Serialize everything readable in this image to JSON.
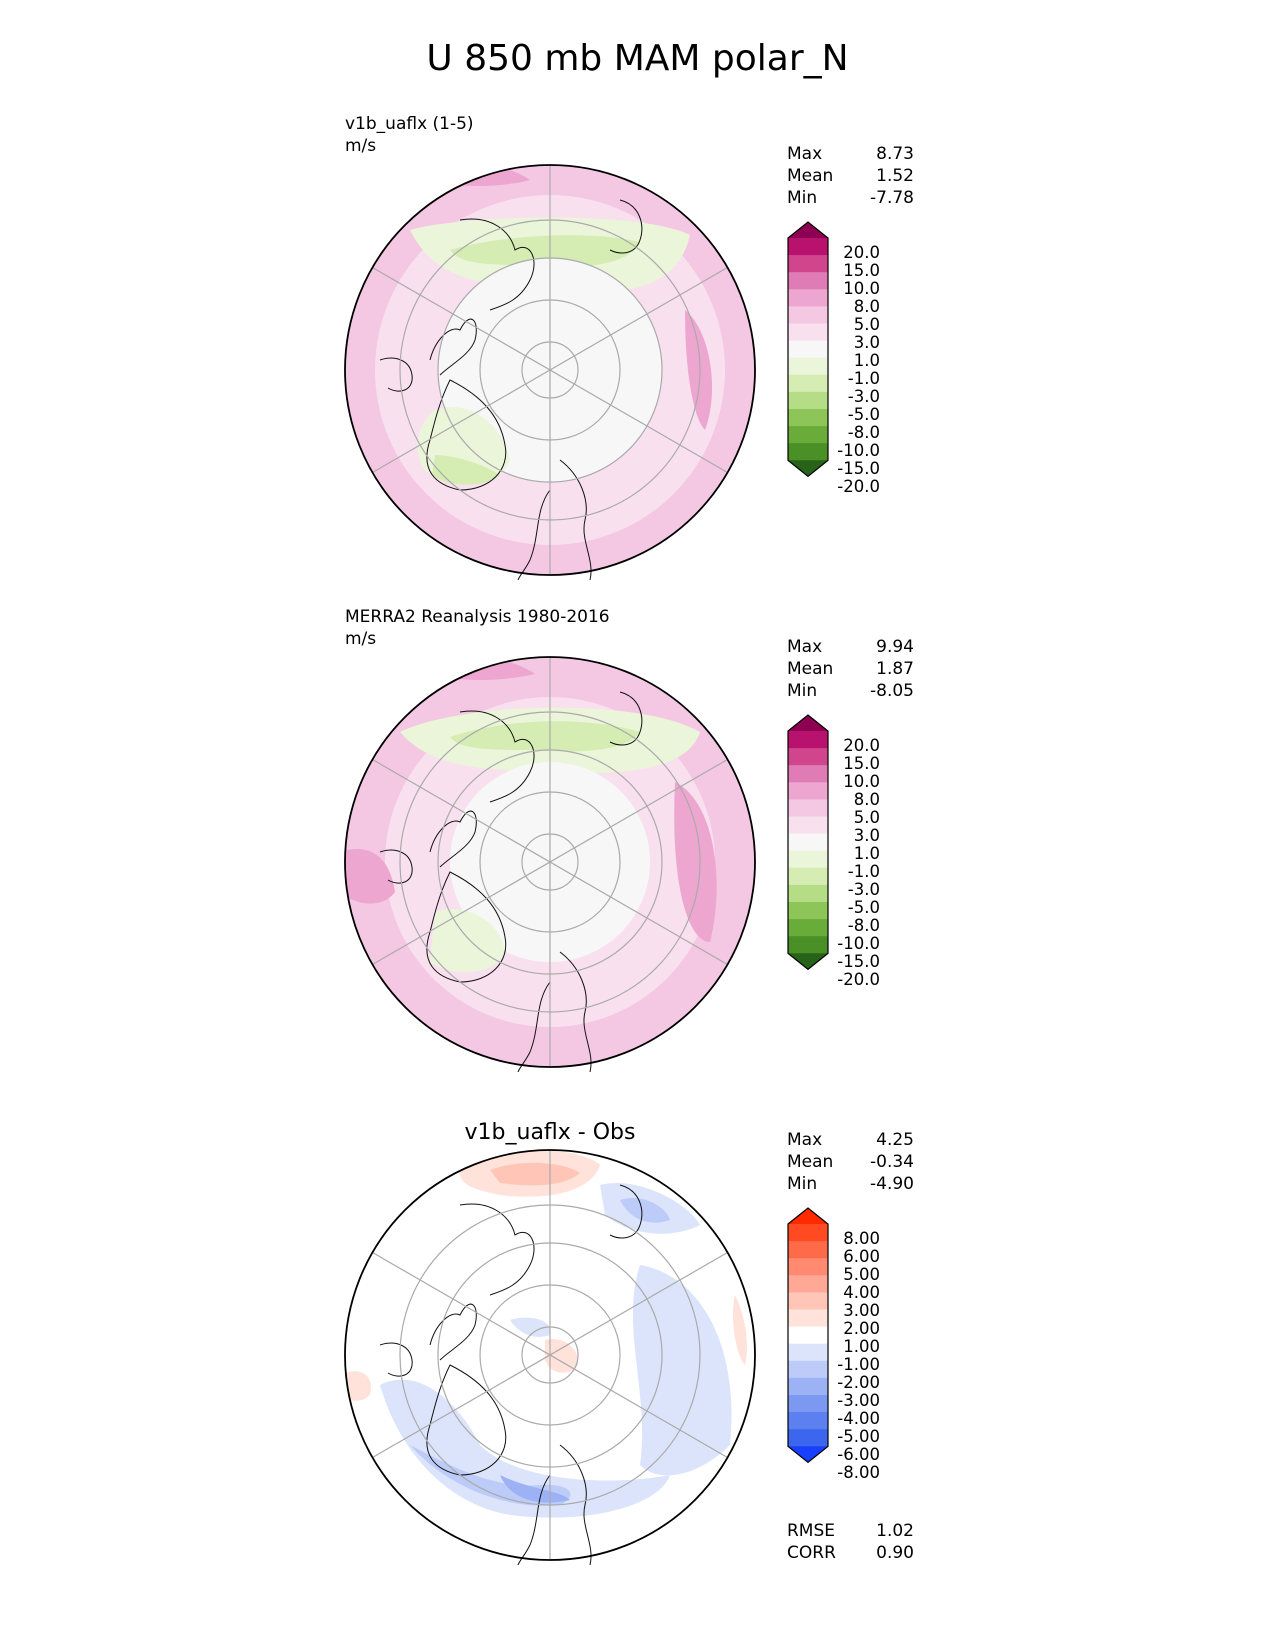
{
  "figure": {
    "title": "U 850 mb MAM polar_N"
  },
  "panels": [
    {
      "name": "test",
      "label": "v1b_uaflx (1-5)",
      "units": "m/s",
      "title": "",
      "stats": {
        "Max": "8.73",
        "Mean": "1.52",
        "Min": "-7.78"
      },
      "colorbar": {
        "levels": [
          "20.0",
          "15.0",
          "10.0",
          "8.0",
          "5.0",
          "3.0",
          "1.0",
          "-1.0",
          "-3.0",
          "-5.0",
          "-8.0",
          "-10.0",
          "-15.0",
          "-20.0"
        ],
        "colors": [
          "#8e0152",
          "#b8126e",
          "#d0458b",
          "#e07cb5",
          "#eca6d0",
          "#f4c7e3",
          "#f9e0ee",
          "#f7f7f7",
          "#ebf5da",
          "#d5ecb3",
          "#b5dd86",
          "#8dc559",
          "#6aac3a",
          "#4b8f27",
          "#276419"
        ]
      }
    },
    {
      "name": "reference",
      "label": "MERRA2 Reanalysis 1980-2016",
      "units": "m/s",
      "title": "",
      "stats": {
        "Max": "9.94",
        "Mean": "1.87",
        "Min": "-8.05"
      },
      "colorbar": {
        "levels": [
          "20.0",
          "15.0",
          "10.0",
          "8.0",
          "5.0",
          "3.0",
          "1.0",
          "-1.0",
          "-3.0",
          "-5.0",
          "-8.0",
          "-10.0",
          "-15.0",
          "-20.0"
        ],
        "colors": [
          "#8e0152",
          "#b8126e",
          "#d0458b",
          "#e07cb5",
          "#eca6d0",
          "#f4c7e3",
          "#f9e0ee",
          "#f7f7f7",
          "#ebf5da",
          "#d5ecb3",
          "#b5dd86",
          "#8dc559",
          "#6aac3a",
          "#4b8f27",
          "#276419"
        ]
      }
    },
    {
      "name": "difference",
      "label": "",
      "units": "",
      "title": "v1b_uaflx - Obs",
      "stats": {
        "Max": "4.25",
        "Mean": "-0.34",
        "Min": "-4.90"
      },
      "colorbar": {
        "levels": [
          "8.00",
          "6.00",
          "5.00",
          "4.00",
          "3.00",
          "2.00",
          "1.00",
          "-1.00",
          "-2.00",
          "-3.00",
          "-4.00",
          "-5.00",
          "-6.00",
          "-8.00"
        ],
        "colors": [
          "#ff2a00",
          "#ff4a22",
          "#ff6a48",
          "#ff8a70",
          "#ffa896",
          "#ffc6b8",
          "#ffe2da",
          "#ffffff",
          "#dce4fb",
          "#bccbf8",
          "#9cb2f5",
          "#7c99f2",
          "#5c80f0",
          "#3c66ee",
          "#1a40ff"
        ]
      },
      "metrics": {
        "RMSE": "1.02",
        "CORR": "0.90"
      }
    }
  ]
}
